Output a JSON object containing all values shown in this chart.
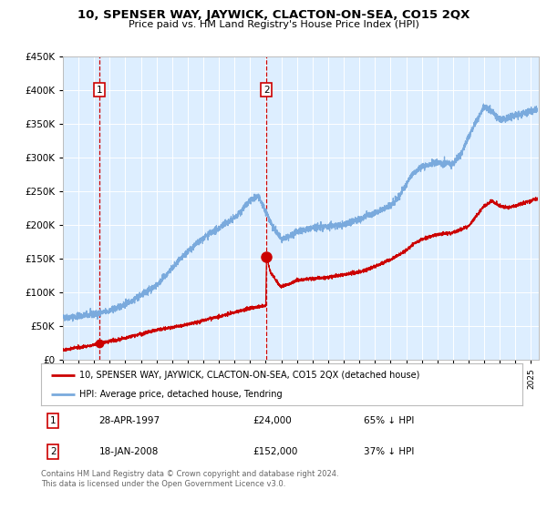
{
  "title": "10, SPENSER WAY, JAYWICK, CLACTON-ON-SEA, CO15 2QX",
  "subtitle": "Price paid vs. HM Land Registry's House Price Index (HPI)",
  "hpi_color": "#7aaadd",
  "price_color": "#cc0000",
  "bg_color": "#ddeeff",
  "sale1_date_num": 1997.32,
  "sale1_price": 24000,
  "sale2_date_num": 2008.05,
  "sale2_price": 152000,
  "ylim_max": 450000,
  "xlim_min": 1995.0,
  "xlim_max": 2025.5,
  "legend_line1": "10, SPENSER WAY, JAYWICK, CLACTON-ON-SEA, CO15 2QX (detached house)",
  "legend_line2": "HPI: Average price, detached house, Tendring",
  "note1_label": "1",
  "note1_date": "28-APR-1997",
  "note1_price": "£24,000",
  "note1_pct": "65% ↓ HPI",
  "note2_label": "2",
  "note2_date": "18-JAN-2008",
  "note2_price": "£152,000",
  "note2_pct": "37% ↓ HPI",
  "footnote": "Contains HM Land Registry data © Crown copyright and database right 2024.\nThis data is licensed under the Open Government Licence v3.0."
}
